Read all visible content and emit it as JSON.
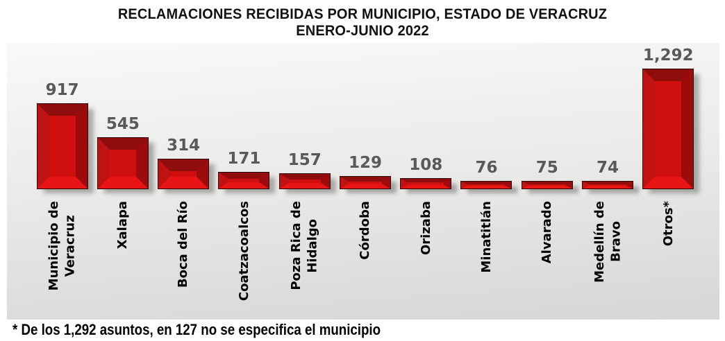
{
  "title": {
    "line1": "RECLAMACIONES RECIBIDAS POR MUNICIPIO, ESTADO DE VERACRUZ",
    "line2": "ENERO-JUNIO 2022"
  },
  "footnote": "* De los 1,292 asuntos, en 127 no se especifica el municipio",
  "chart_data": {
    "type": "bar",
    "title": "RECLAMACIONES RECIBIDAS POR MUNICIPIO, ESTADO DE VERACRUZ ENERO-JUNIO 2022",
    "categories": [
      "Municipio de\nVeracruz",
      "Xalapa",
      "Boca del Río",
      "Coatzacoalcos",
      "Poza Rica de\nHidalgo",
      "Córdoba",
      "Orizaba",
      "Minatitlán",
      "Alvarado",
      "Medellín de\nBravo",
      "Otros*"
    ],
    "values": [
      917,
      545,
      314,
      171,
      157,
      129,
      108,
      76,
      75,
      74,
      1292
    ],
    "value_labels": [
      "917",
      "545",
      "314",
      "171",
      "157",
      "129",
      "108",
      "76",
      "75",
      "74",
      "1,292"
    ],
    "xlabel": "",
    "ylabel": "",
    "ylim": [
      0,
      1292
    ],
    "grid": false,
    "legend": false,
    "bar_color": "#d00f0f",
    "bar_bevel_dark": "#8f0d0d",
    "bar_bevel_bright": "#e91414",
    "value_label_color": "#595959",
    "plot_background": "#e9e9e7",
    "annotation": "* De los 1,292 asuntos, en 127 no se especifica el municipio"
  }
}
